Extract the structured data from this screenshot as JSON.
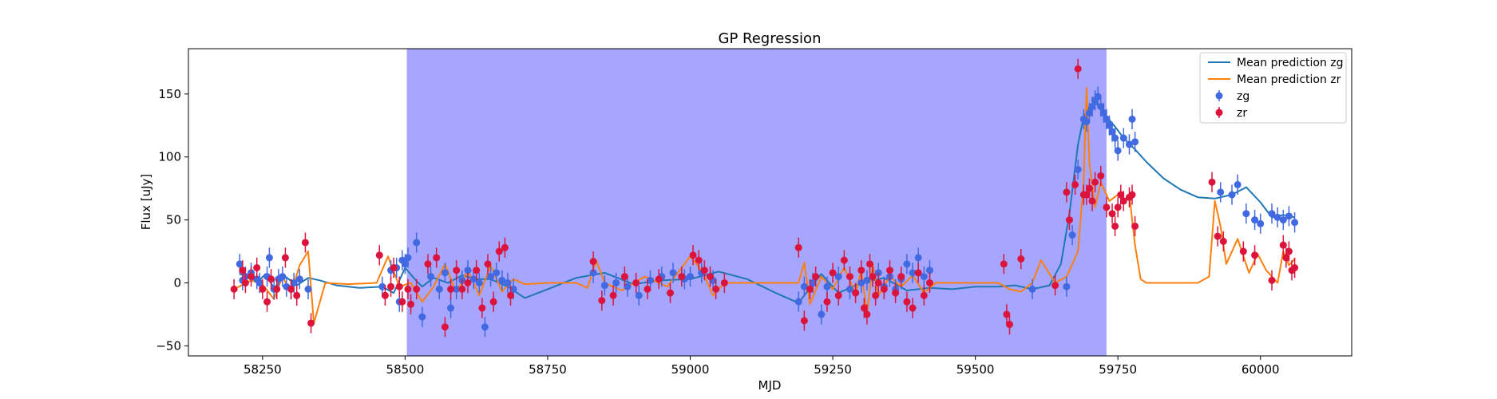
{
  "chart_data": {
    "type": "line",
    "title": "GP Regression",
    "xlabel": "MJD",
    "ylabel": "Flux [uJy]",
    "xlim": [
      58120,
      60160
    ],
    "ylim": [
      -58,
      186
    ],
    "xticks": [
      58250,
      58500,
      58750,
      59000,
      59250,
      59500,
      59750,
      60000
    ],
    "yticks": [
      -50,
      0,
      50,
      100,
      150
    ],
    "grid": false,
    "legend_position": "top-right",
    "shaded_region": {
      "x0": 58503,
      "x1": 59730,
      "color": "#a6a6ff"
    },
    "colors": {
      "zg_line": "#1f77b4",
      "zr_line": "#ff7f0e",
      "zg_points": "#4169e1",
      "zr_points": "#dc143c"
    },
    "lines": [
      {
        "name": "Mean prediction zg",
        "x": [
          58210,
          58225,
          58240,
          58255,
          58270,
          58290,
          58310,
          58330,
          58350,
          58380,
          58420,
          58460,
          58480,
          58500,
          58515,
          58530,
          58550,
          58575,
          58600,
          58625,
          58650,
          58680,
          58710,
          58750,
          58800,
          58850,
          58900,
          58950,
          59000,
          59050,
          59100,
          59150,
          59190,
          59210,
          59230,
          59260,
          59300,
          59340,
          59380,
          59420,
          59460,
          59500,
          59540,
          59570,
          59600,
          59630,
          59650,
          59665,
          59680,
          59690,
          59700,
          59710,
          59720,
          59730,
          59745,
          59760,
          59780,
          59800,
          59830,
          59860,
          59890,
          59920,
          59950,
          59975,
          60000,
          60020,
          60040,
          60060
        ],
        "y": [
          7,
          5,
          0,
          7,
          -4,
          5,
          -2,
          4,
          2,
          -2,
          -4,
          -3,
          -8,
          12,
          4,
          -3,
          4,
          0,
          6,
          3,
          3,
          -3,
          -12,
          -5,
          4,
          8,
          -1,
          2,
          3,
          9,
          3,
          -8,
          -16,
          -4,
          7,
          -8,
          0,
          4,
          -6,
          -4,
          -5,
          -3,
          -3,
          -2,
          -5,
          -2,
          15,
          55,
          110,
          132,
          140,
          143,
          139,
          132,
          124,
          115,
          106,
          96,
          83,
          74,
          68,
          67,
          70,
          76,
          64,
          52,
          54,
          52
        ]
      },
      {
        "name": "Mean prediction zr",
        "x": [
          58200,
          58230,
          58250,
          58270,
          58285,
          58300,
          58315,
          58330,
          58340,
          58360,
          58400,
          58450,
          58470,
          58490,
          58510,
          58530,
          58550,
          58570,
          58590,
          58610,
          58630,
          58650,
          58670,
          58690,
          58710,
          58750,
          58800,
          58820,
          58835,
          58850,
          58880,
          58920,
          58960,
          59000,
          59020,
          59040,
          59060,
          59100,
          59150,
          59190,
          59200,
          59210,
          59230,
          59250,
          59270,
          59290,
          59300,
          59310,
          59320,
          59330,
          59350,
          59370,
          59390,
          59410,
          59430,
          59500,
          59540,
          59560,
          59580,
          59600,
          59615,
          59640,
          59660,
          59680,
          59690,
          59695,
          59700,
          59710,
          59720,
          59735,
          59750,
          59760,
          59770,
          59780,
          59790,
          59800,
          59850,
          59890,
          59910,
          59920,
          59930,
          59940,
          59960,
          59980,
          59995,
          60010,
          60030,
          60040,
          60050,
          60060
        ],
        "y": [
          -5,
          2,
          -1,
          -13,
          5,
          -8,
          14,
          25,
          -32,
          0,
          -1,
          0,
          21,
          -3,
          0,
          -15,
          -3,
          15,
          -8,
          10,
          -10,
          14,
          -7,
          3,
          -1,
          0,
          0,
          -4,
          18,
          0,
          -6,
          5,
          -3,
          21,
          10,
          -10,
          0,
          0,
          0,
          0,
          16,
          -17,
          5,
          -5,
          12,
          -8,
          10,
          -25,
          15,
          -10,
          5,
          -3,
          6,
          -8,
          0,
          0,
          0,
          -5,
          -7,
          0,
          18,
          0,
          5,
          25,
          80,
          155,
          95,
          60,
          80,
          65,
          70,
          65,
          70,
          30,
          3,
          0,
          0,
          0,
          5,
          65,
          45,
          15,
          35,
          8,
          23,
          10,
          0,
          25,
          14,
          19
        ]
      }
    ],
    "series": [
      {
        "name": "zg",
        "x": [
          58210,
          58215,
          58220,
          58230,
          58240,
          58245,
          58258,
          58262,
          58270,
          58278,
          58285,
          58292,
          58300,
          58305,
          58315,
          58330,
          58460,
          58475,
          58485,
          58490,
          58495,
          58500,
          58505,
          58520,
          58530,
          58545,
          58560,
          58570,
          58580,
          58590,
          58600,
          58610,
          58620,
          58630,
          58640,
          58650,
          58660,
          58670,
          58680,
          58690,
          58830,
          58850,
          58870,
          58890,
          58910,
          58930,
          58950,
          58970,
          58990,
          59000,
          59020,
          59040,
          59190,
          59200,
          59215,
          59230,
          59240,
          59260,
          59280,
          59300,
          59310,
          59320,
          59330,
          59340,
          59350,
          59360,
          59370,
          59380,
          59390,
          59400,
          59410,
          59420,
          59600,
          59660,
          59670,
          59680,
          59690,
          59695,
          59700,
          59705,
          59710,
          59715,
          59720,
          59725,
          59730,
          59735,
          59740,
          59745,
          59750,
          59760,
          59770,
          59775,
          59780,
          59930,
          59950,
          59960,
          59975,
          59990,
          60000,
          60020,
          60030,
          60040,
          60050,
          60060
        ],
        "y": [
          15,
          2,
          5,
          8,
          3,
          0,
          5,
          20,
          -5,
          3,
          5,
          -3,
          -5,
          0,
          3,
          -5,
          -3,
          10,
          12,
          -15,
          18,
          15,
          20,
          32,
          -27,
          5,
          -5,
          8,
          -20,
          -5,
          2,
          10,
          3,
          0,
          -35,
          5,
          8,
          2,
          0,
          -5,
          8,
          -2,
          0,
          -3,
          -10,
          2,
          5,
          8,
          3,
          5,
          8,
          2,
          -15,
          -3,
          0,
          -25,
          -3,
          5,
          -5,
          0,
          2,
          5,
          8,
          -3,
          5,
          -5,
          3,
          15,
          8,
          20,
          5,
          10,
          -5,
          -3,
          38,
          90,
          130,
          128,
          135,
          140,
          145,
          148,
          140,
          135,
          130,
          125,
          120,
          115,
          105,
          115,
          110,
          130,
          112,
          72,
          70,
          78,
          55,
          50,
          47,
          55,
          52,
          50,
          53,
          48
        ]
      },
      {
        "name": "zr",
        "x": [
          58200,
          58215,
          58220,
          58230,
          58240,
          58250,
          58258,
          58265,
          58275,
          58290,
          58300,
          58310,
          58325,
          58335,
          58455,
          58465,
          58475,
          58480,
          58490,
          58495,
          58505,
          58510,
          58520,
          58540,
          58555,
          58570,
          58580,
          58590,
          58600,
          58610,
          58625,
          58635,
          58645,
          58655,
          58665,
          58675,
          58685,
          58830,
          58845,
          58865,
          58885,
          58905,
          58925,
          58945,
          58965,
          58985,
          59005,
          59015,
          59025,
          59035,
          59045,
          59060,
          59190,
          59200,
          59210,
          59220,
          59240,
          59250,
          59260,
          59270,
          59280,
          59290,
          59300,
          59305,
          59310,
          59315,
          59320,
          59325,
          59330,
          59340,
          59350,
          59360,
          59370,
          59380,
          59390,
          59400,
          59410,
          59420,
          59550,
          59555,
          59560,
          59580,
          59640,
          59660,
          59665,
          59675,
          59680,
          59690,
          59695,
          59700,
          59705,
          59710,
          59720,
          59730,
          59740,
          59745,
          59750,
          59755,
          59760,
          59770,
          59775,
          59780,
          59915,
          59925,
          59935,
          59970,
          59990,
          60020,
          60040,
          60045,
          60050,
          60055,
          60060
        ],
        "y": [
          -5,
          10,
          0,
          5,
          12,
          -5,
          -15,
          3,
          -5,
          20,
          -5,
          -10,
          32,
          -32,
          22,
          -10,
          -3,
          12,
          -3,
          -15,
          -5,
          -17,
          -5,
          15,
          20,
          -35,
          -5,
          10,
          -5,
          0,
          10,
          -20,
          15,
          -15,
          25,
          28,
          -10,
          17,
          -14,
          -10,
          5,
          0,
          -5,
          3,
          -8,
          5,
          22,
          18,
          10,
          5,
          -5,
          0,
          28,
          -30,
          -5,
          5,
          -15,
          8,
          -10,
          18,
          5,
          -8,
          10,
          -20,
          -25,
          15,
          5,
          -10,
          0,
          -5,
          10,
          -8,
          5,
          -15,
          -20,
          8,
          -10,
          0,
          15,
          -25,
          -33,
          19,
          -2,
          72,
          50,
          78,
          170,
          70,
          70,
          75,
          65,
          80,
          85,
          60,
          55,
          45,
          60,
          70,
          65,
          68,
          70,
          45,
          80,
          37,
          33,
          25,
          22,
          2,
          30,
          20,
          25,
          10,
          12
        ]
      }
    ]
  }
}
